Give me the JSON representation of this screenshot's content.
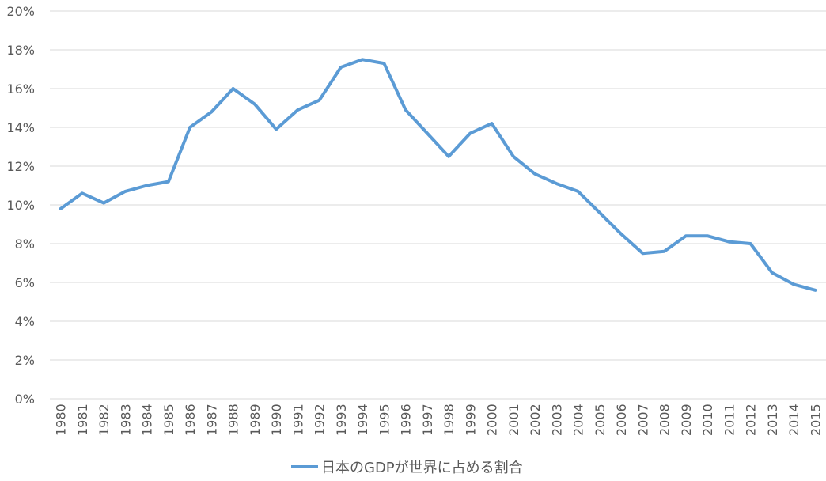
{
  "chart_data": {
    "type": "line",
    "title": "",
    "xlabel": "",
    "ylabel": "",
    "ylim": [
      0,
      20
    ],
    "y_ticks": [
      "0%",
      "2%",
      "4%",
      "6%",
      "8%",
      "10%",
      "12%",
      "14%",
      "16%",
      "18%",
      "20%"
    ],
    "grid": true,
    "legend_position": "bottom",
    "categories": [
      "1980",
      "1981",
      "1982",
      "1983",
      "1984",
      "1985",
      "1986",
      "1987",
      "1988",
      "1989",
      "1990",
      "1991",
      "1992",
      "1993",
      "1994",
      "1995",
      "1996",
      "1997",
      "1998",
      "1999",
      "2000",
      "2001",
      "2002",
      "2003",
      "2004",
      "2005",
      "2006",
      "2007",
      "2008",
      "2009",
      "2010",
      "2011",
      "2012",
      "2013",
      "2014",
      "2015"
    ],
    "series": [
      {
        "name": "日本のGDPが世界に占める割合",
        "color": "#5b9bd5",
        "values": [
          9.8,
          10.6,
          10.1,
          10.7,
          11.0,
          11.2,
          14.0,
          14.8,
          16.0,
          15.2,
          13.9,
          14.9,
          15.4,
          17.1,
          17.5,
          17.3,
          14.9,
          13.7,
          12.5,
          13.7,
          14.2,
          12.5,
          11.6,
          11.1,
          10.7,
          9.6,
          8.5,
          7.5,
          7.6,
          8.4,
          8.4,
          8.1,
          8.0,
          6.5,
          5.9,
          5.6
        ]
      }
    ]
  }
}
